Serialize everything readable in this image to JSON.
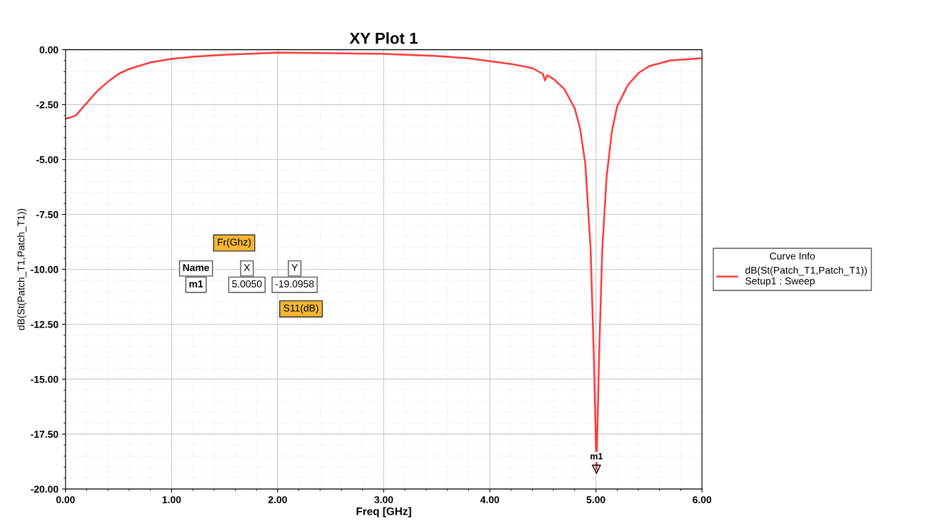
{
  "chart_data": {
    "type": "line",
    "title": "XY Plot 1",
    "xlabel": "Freq [GHz]",
    "ylabel": "dB(St(Patch_T1,Patch_T1))",
    "legend_title": "Curve Info",
    "series": [
      {
        "name": "dB(St(Patch_T1,Patch_T1))\nSetup1 : Sweep",
        "color": "#ff3b3b",
        "x": [
          0,
          0.05,
          0.1,
          0.2,
          0.3,
          0.4,
          0.5,
          0.6,
          0.8,
          1.0,
          1.2,
          1.5,
          2.0,
          2.5,
          3.0,
          3.5,
          3.8,
          4.0,
          4.2,
          4.4,
          4.5,
          4.52,
          4.54,
          4.6,
          4.7,
          4.8,
          4.85,
          4.9,
          4.95,
          4.98,
          5.005,
          5.03,
          5.06,
          5.1,
          5.15,
          5.2,
          5.3,
          5.4,
          5.5,
          5.7,
          6.0
        ],
        "values": [
          -3.14,
          -3.08,
          -2.98,
          -2.43,
          -1.88,
          -1.46,
          -1.1,
          -0.88,
          -0.58,
          -0.42,
          -0.32,
          -0.23,
          -0.13,
          -0.16,
          -0.19,
          -0.29,
          -0.39,
          -0.52,
          -0.65,
          -0.84,
          -1.1,
          -1.4,
          -1.17,
          -1.33,
          -1.78,
          -2.66,
          -3.57,
          -5.19,
          -9.08,
          -13.9,
          -19.1,
          -13.9,
          -9.1,
          -5.83,
          -3.73,
          -2.59,
          -1.62,
          -1.07,
          -0.75,
          -0.49,
          -0.39
        ]
      }
    ],
    "xlim": [
      0,
      6
    ],
    "xticks": [
      {
        "value": 0,
        "label": "0.00"
      },
      {
        "value": 1,
        "label": "1.00"
      },
      {
        "value": 2,
        "label": "2.00"
      },
      {
        "value": 3,
        "label": "3.00"
      },
      {
        "value": 4,
        "label": "4.00"
      },
      {
        "value": 5,
        "label": "5.00"
      },
      {
        "value": 6,
        "label": "6.00"
      }
    ],
    "ylim": [
      -20,
      0
    ],
    "yticks": [
      {
        "value": -20,
        "label": "-20.00"
      },
      {
        "value": -17.5,
        "label": "-17.50"
      },
      {
        "value": -15,
        "label": "-15.00"
      },
      {
        "value": -12.5,
        "label": "-12.50"
      },
      {
        "value": -10,
        "label": "-10.00"
      },
      {
        "value": -7.5,
        "label": "-7.50"
      },
      {
        "value": -5,
        "label": "-5.00"
      },
      {
        "value": -2.5,
        "label": "-2.50"
      },
      {
        "value": 0,
        "label": "0.00"
      }
    ],
    "grid": true,
    "legend": "right",
    "line_style": "solid",
    "marker": "none",
    "annotations": [
      "Fr(Ghz)",
      "Name",
      "X",
      "Y",
      "m1",
      "5.0050",
      "-19.0958",
      "S11(dB)",
      {
        "text": "m1",
        "x": 5.005,
        "y": -19.0958
      }
    ]
  }
}
